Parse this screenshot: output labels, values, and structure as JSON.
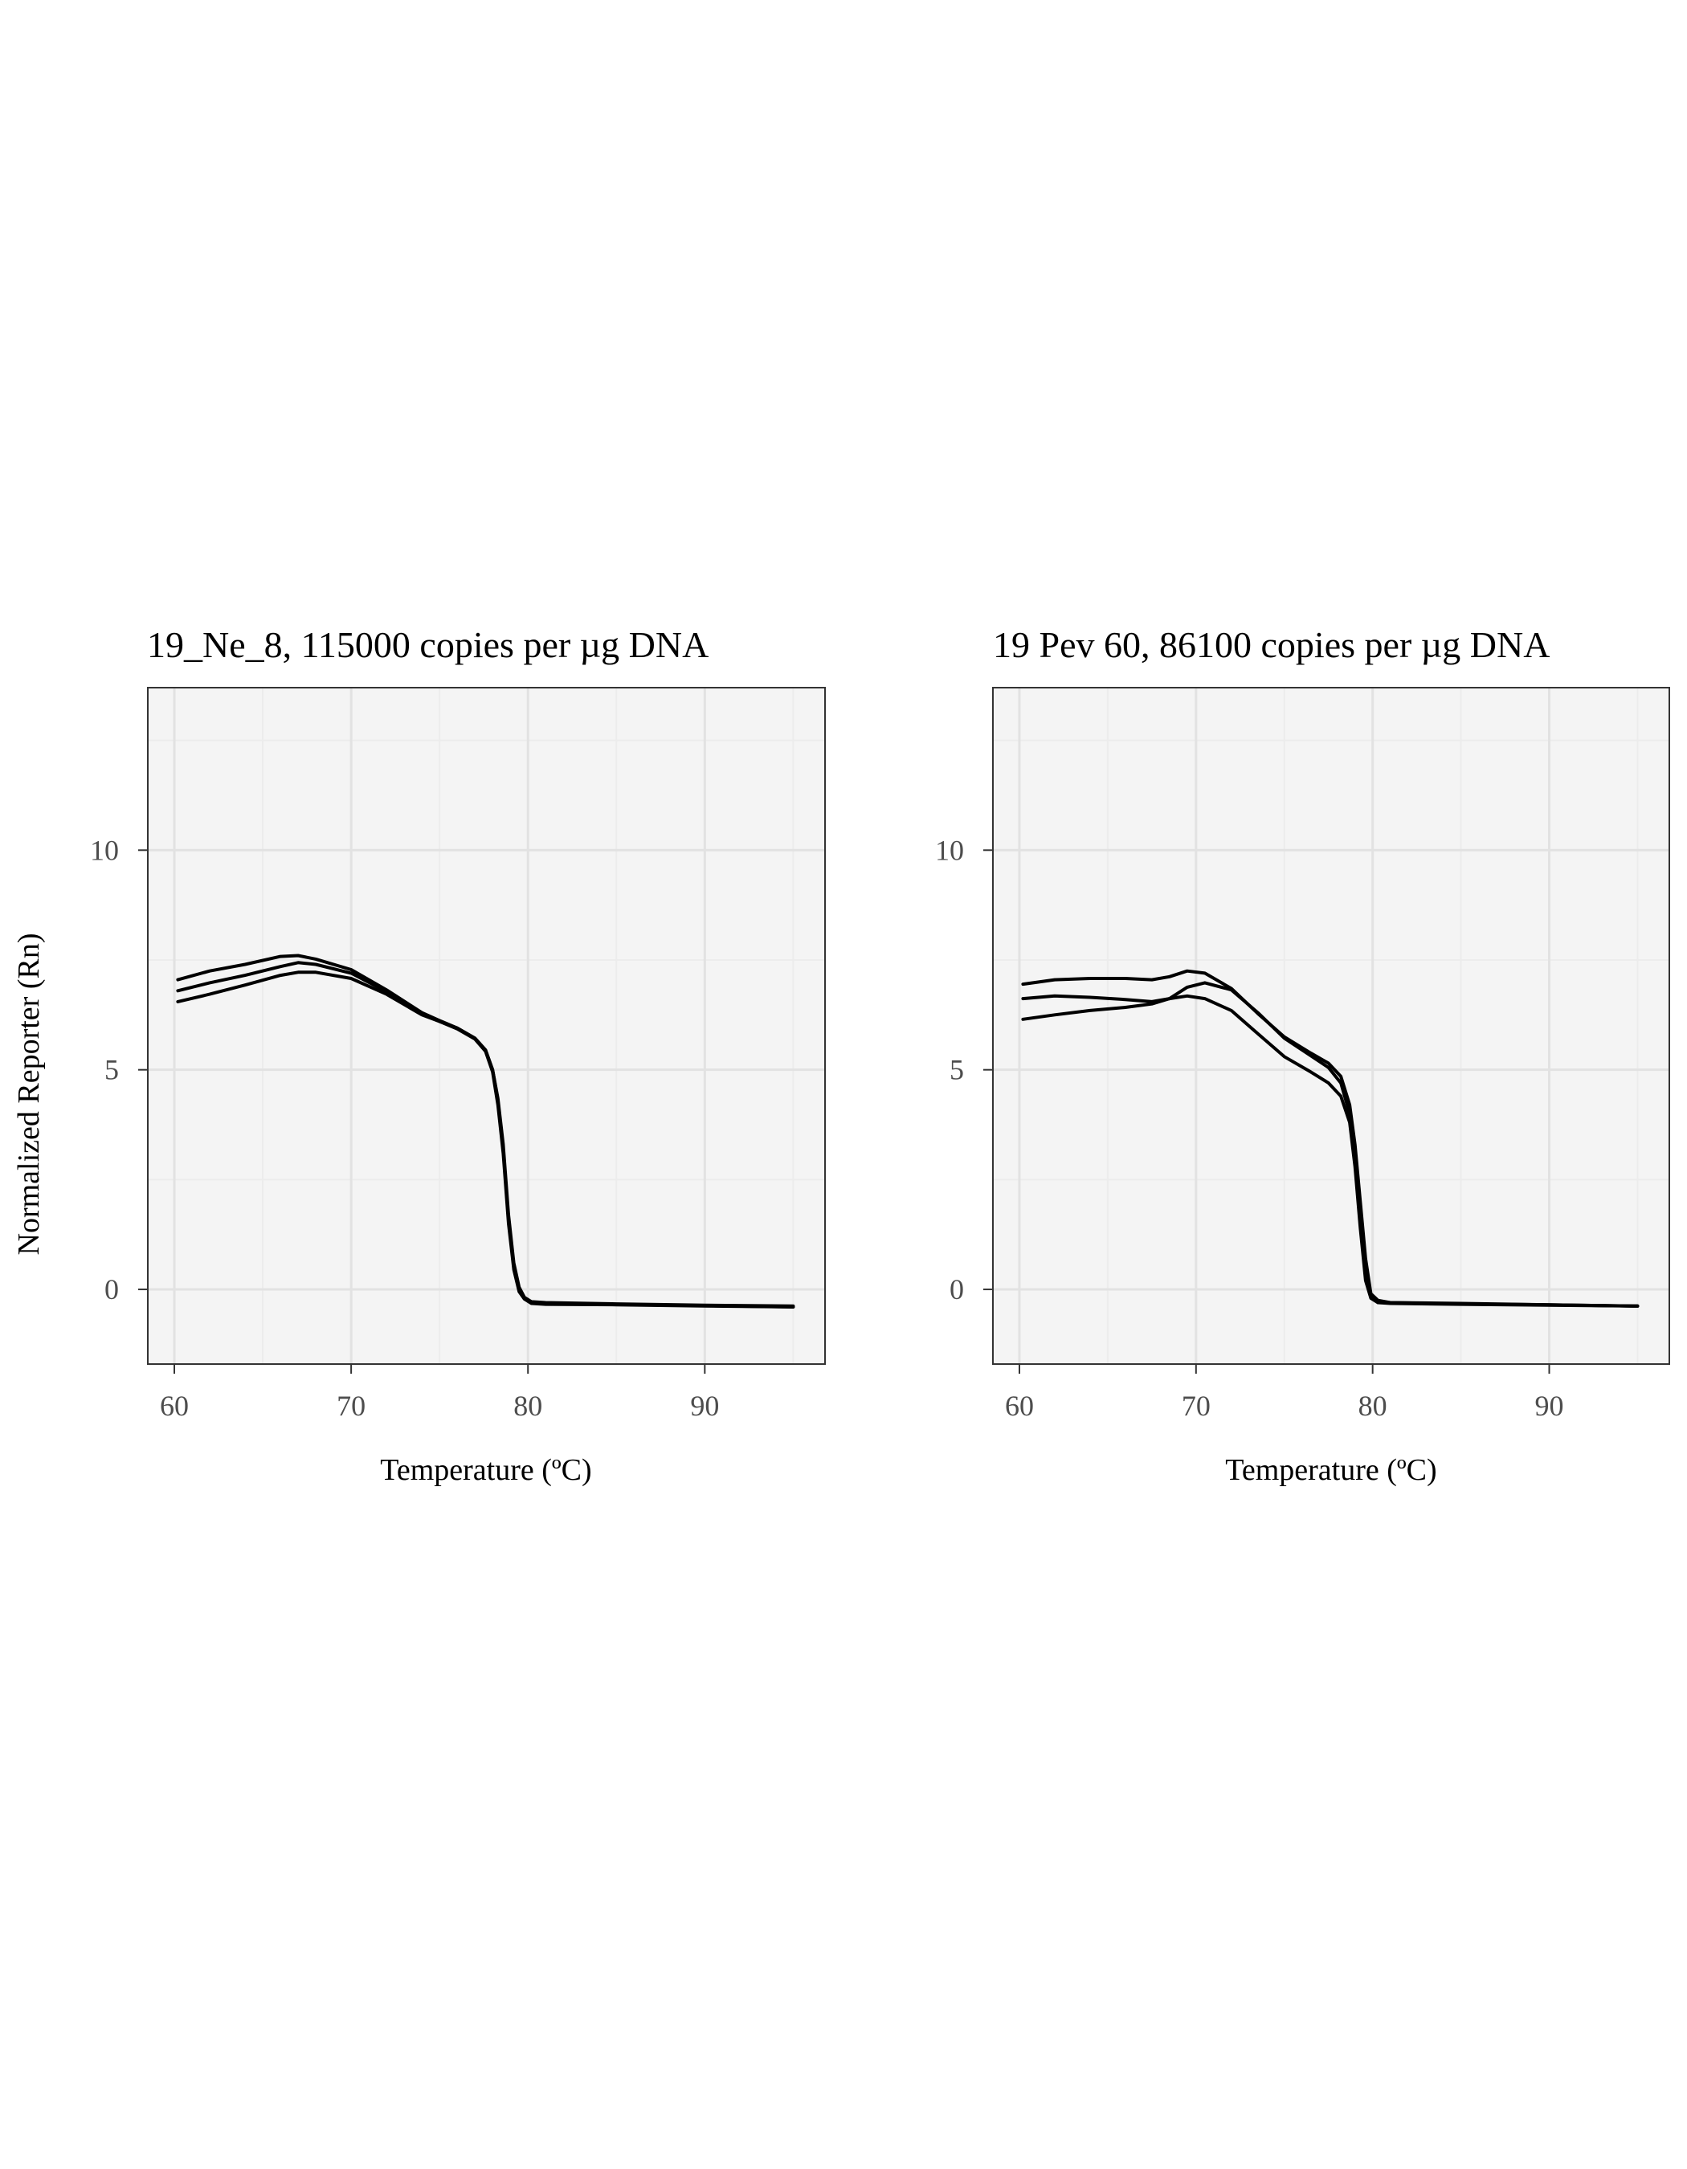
{
  "figure": {
    "shared_ylabel": "Normalized Reporter (Rn)"
  },
  "chart_data": [
    {
      "type": "line",
      "title": "19_Ne_8, 115000 copies per µg DNA",
      "xlabel": "Temperature (ºC)",
      "ylabel": "Normalized Reporter (Rn)",
      "xlim": [
        58.5,
        96.8
      ],
      "ylim": [
        -1.7,
        13.7
      ],
      "xticks": [
        60,
        70,
        80,
        90
      ],
      "yticks": [
        0,
        5,
        10
      ],
      "grid": true,
      "x": [
        60.2,
        62,
        64,
        66,
        67,
        68,
        70,
        72,
        74,
        75,
        76,
        77,
        77.6,
        78,
        78.3,
        78.6,
        78.9,
        79.2,
        79.5,
        79.8,
        80.2,
        81,
        85,
        90,
        95
      ],
      "series": [
        {
          "values": [
            7.05,
            7.25,
            7.4,
            7.58,
            7.6,
            7.52,
            7.28,
            6.82,
            6.3,
            6.12,
            5.95,
            5.72,
            5.45,
            5.0,
            4.35,
            3.3,
            1.7,
            0.6,
            0.05,
            -0.18,
            -0.28,
            -0.3,
            -0.33,
            -0.36,
            -0.38
          ]
        },
        {
          "values": [
            6.8,
            6.98,
            7.15,
            7.35,
            7.44,
            7.4,
            7.2,
            6.78,
            6.28,
            6.1,
            5.95,
            5.72,
            5.45,
            5.0,
            4.3,
            3.2,
            1.6,
            0.5,
            0.0,
            -0.2,
            -0.3,
            -0.32,
            -0.34,
            -0.37,
            -0.4
          ]
        },
        {
          "values": [
            6.55,
            6.72,
            6.93,
            7.15,
            7.22,
            7.22,
            7.08,
            6.72,
            6.25,
            6.1,
            5.93,
            5.7,
            5.42,
            4.95,
            4.2,
            3.1,
            1.5,
            0.45,
            -0.05,
            -0.22,
            -0.32,
            -0.34,
            -0.35,
            -0.38,
            -0.4
          ]
        }
      ]
    },
    {
      "type": "line",
      "title": "19 Pev 60, 86100 copies per µg DNA",
      "xlabel": "Temperature (ºC)",
      "ylabel": "",
      "xlim": [
        58.5,
        96.8
      ],
      "ylim": [
        -1.7,
        13.7
      ],
      "xticks": [
        60,
        70,
        80,
        90
      ],
      "yticks": [
        0,
        5,
        10
      ],
      "grid": true,
      "x": [
        60.2,
        62,
        64,
        66,
        67.5,
        68.5,
        69.5,
        70.5,
        72,
        73.5,
        75,
        76.5,
        77.5,
        78.2,
        78.7,
        79.0,
        79.3,
        79.6,
        79.9,
        80.3,
        81,
        85,
        90,
        95
      ],
      "series": [
        {
          "values": [
            6.95,
            7.05,
            7.08,
            7.08,
            7.05,
            7.12,
            7.25,
            7.2,
            6.85,
            6.28,
            5.75,
            5.38,
            5.15,
            4.85,
            4.2,
            3.3,
            2.0,
            0.7,
            -0.1,
            -0.25,
            -0.3,
            -0.32,
            -0.35,
            -0.38
          ]
        },
        {
          "values": [
            6.62,
            6.68,
            6.65,
            6.6,
            6.55,
            6.62,
            6.88,
            6.98,
            6.82,
            6.3,
            5.72,
            5.32,
            5.05,
            4.7,
            4.0,
            3.0,
            1.6,
            0.4,
            -0.15,
            -0.28,
            -0.3,
            -0.33,
            -0.35,
            -0.38
          ]
        },
        {
          "values": [
            6.15,
            6.25,
            6.35,
            6.42,
            6.5,
            6.62,
            6.68,
            6.62,
            6.35,
            5.82,
            5.3,
            4.95,
            4.7,
            4.4,
            3.8,
            2.8,
            1.4,
            0.2,
            -0.2,
            -0.3,
            -0.32,
            -0.34,
            -0.36,
            -0.38
          ]
        }
      ]
    }
  ]
}
